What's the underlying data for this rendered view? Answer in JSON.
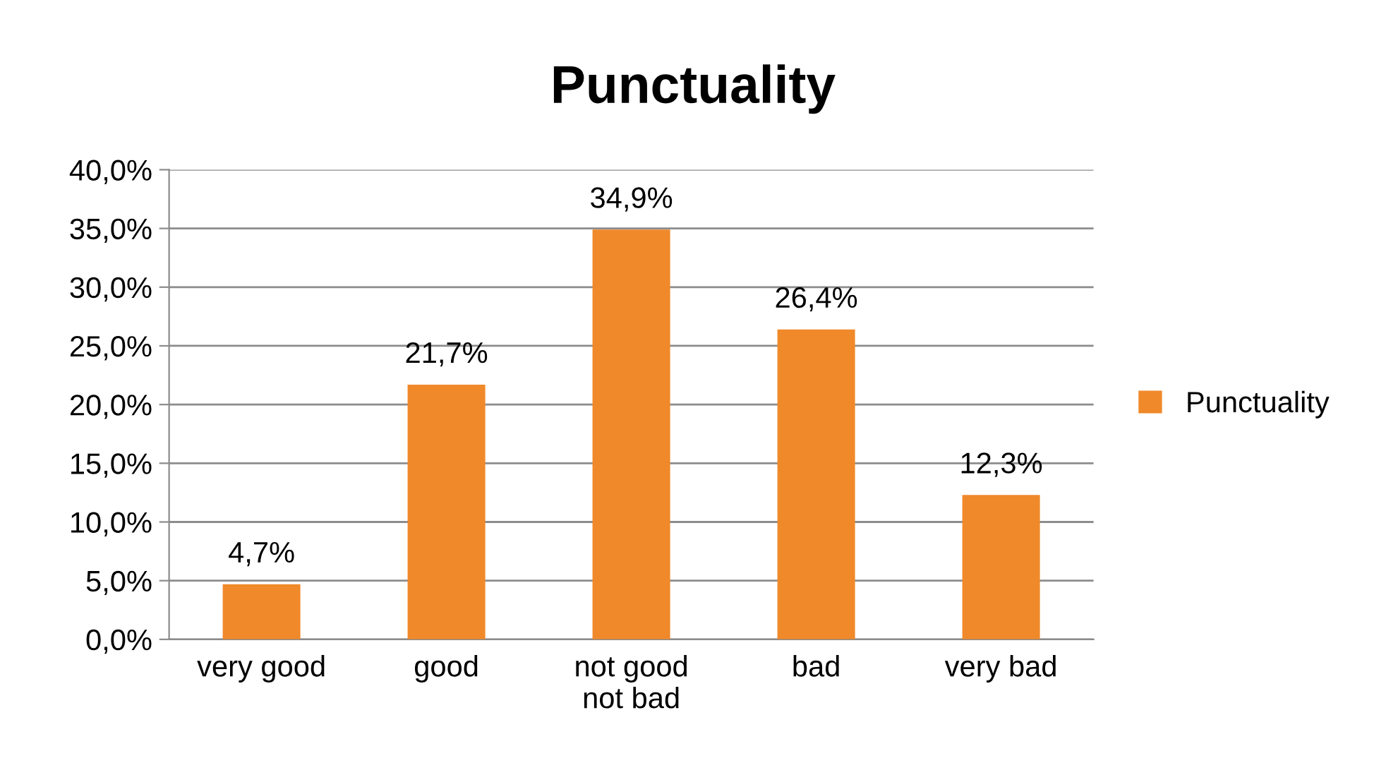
{
  "chart_data": {
    "type": "bar",
    "title": "Punctuality",
    "categories": [
      "very good",
      "good",
      "not good\nnot bad",
      "bad",
      "very bad"
    ],
    "series": [
      {
        "name": "Punctuality",
        "color": "#f0892a",
        "values": [
          4.7,
          21.7,
          34.9,
          26.4,
          12.3
        ],
        "value_labels": [
          "4,7%",
          "21,7%",
          "34,9%",
          "26,4%",
          "12,3%"
        ]
      }
    ],
    "ylim": [
      0,
      40
    ],
    "yticks": [
      {
        "value": 0,
        "label": "0,0%"
      },
      {
        "value": 5,
        "label": "5,0%"
      },
      {
        "value": 10,
        "label": "10,0%"
      },
      {
        "value": 15,
        "label": "15,0%"
      },
      {
        "value": 20,
        "label": "20,0%"
      },
      {
        "value": 25,
        "label": "25,0%"
      },
      {
        "value": 30,
        "label": "30,0%"
      },
      {
        "value": 35,
        "label": "35,0%"
      },
      {
        "value": 40,
        "label": "40,0%"
      }
    ],
    "grid": "y",
    "legend": "right"
  }
}
